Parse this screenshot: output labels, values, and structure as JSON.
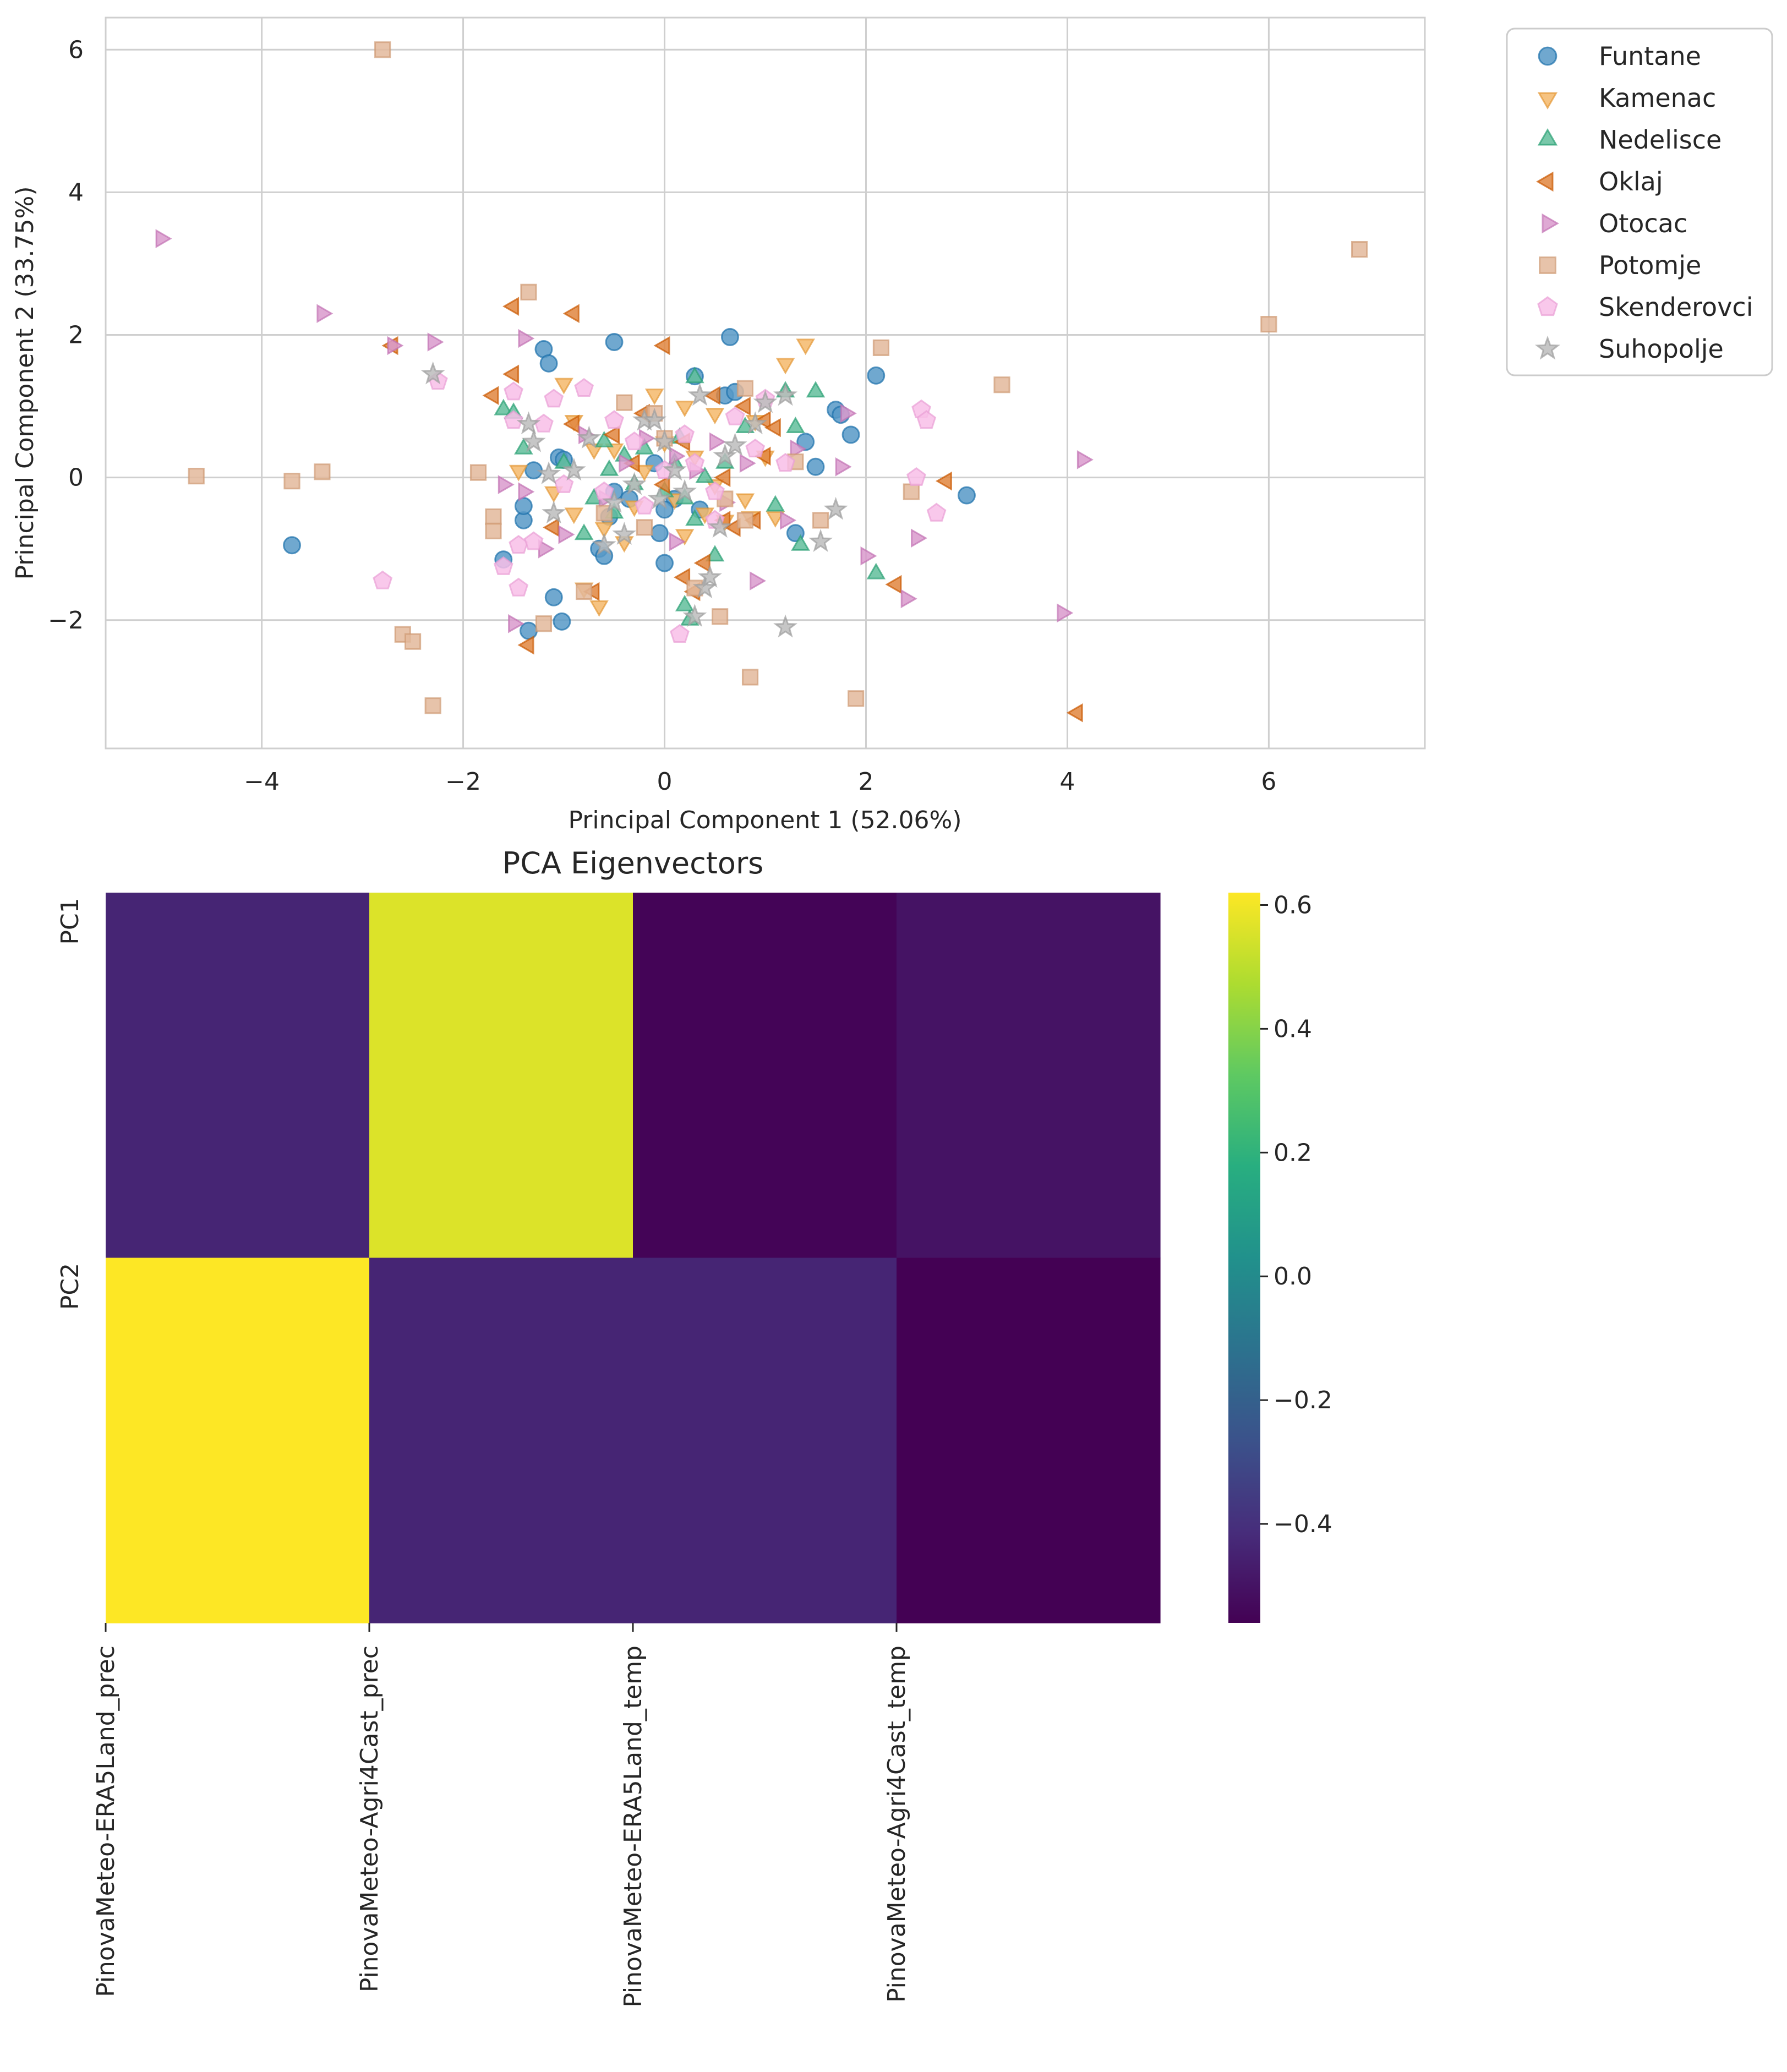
{
  "chart_data": [
    {
      "type": "scatter",
      "xlabel": "Principal Component 1 (52.06%)",
      "ylabel": "Principal Component 2 (33.75%)",
      "xlim": [
        -5.55,
        7.55
      ],
      "ylim": [
        -3.8,
        6.45
      ],
      "xticks": [
        -4,
        -2,
        0,
        2,
        4,
        6
      ],
      "yticks": [
        -2,
        0,
        2,
        4,
        6
      ],
      "grid": true,
      "legend_position": "outside-right-top",
      "series": [
        {
          "name": "Funtane",
          "marker": "circle",
          "color": "#1f77b4",
          "points": [
            [
              -3.7,
              -0.95
            ],
            [
              -1.2,
              1.8
            ],
            [
              -1.15,
              1.6
            ],
            [
              -0.5,
              1.9
            ],
            [
              0.65,
              1.97
            ],
            [
              2.1,
              1.43
            ],
            [
              3.0,
              -0.25
            ],
            [
              -1.6,
              -1.15
            ],
            [
              -1.35,
              -2.15
            ],
            [
              -1.1,
              -1.68
            ],
            [
              -1.02,
              -2.02
            ],
            [
              -1.4,
              -0.6
            ],
            [
              -1.3,
              0.1
            ],
            [
              -1.05,
              0.28
            ],
            [
              -0.65,
              -1.0
            ],
            [
              -0.6,
              -1.1
            ],
            [
              -0.5,
              -0.2
            ],
            [
              -0.35,
              -0.3
            ],
            [
              -0.1,
              0.2
            ],
            [
              0.0,
              -1.2
            ],
            [
              0.3,
              1.42
            ],
            [
              0.6,
              1.15
            ],
            [
              0.7,
              1.2
            ],
            [
              1.3,
              -0.78
            ],
            [
              1.4,
              0.5
            ],
            [
              1.5,
              0.15
            ],
            [
              1.7,
              0.95
            ],
            [
              1.75,
              0.88
            ],
            [
              1.85,
              0.6
            ],
            [
              -0.05,
              -0.78
            ],
            [
              0.1,
              -0.3
            ],
            [
              0.35,
              -0.45
            ],
            [
              -1.4,
              -0.4
            ],
            [
              -1.0,
              0.25
            ],
            [
              -0.55,
              -0.55
            ],
            [
              0.0,
              -0.45
            ]
          ]
        },
        {
          "name": "Kamenac",
          "marker": "triangle-down",
          "color": "#f0a13a",
          "points": [
            [
              1.2,
              1.6
            ],
            [
              1.4,
              1.87
            ],
            [
              -1.0,
              1.32
            ],
            [
              -0.1,
              1.17
            ],
            [
              0.2,
              1.0
            ],
            [
              1.1,
              -0.55
            ],
            [
              -0.8,
              -1.55
            ],
            [
              -0.65,
              -1.8
            ],
            [
              -1.45,
              0.1
            ],
            [
              -1.1,
              -0.2
            ],
            [
              -0.9,
              0.8
            ],
            [
              -0.5,
              0.4
            ],
            [
              -0.3,
              -0.4
            ],
            [
              -0.2,
              0.1
            ],
            [
              0.0,
              0.5
            ],
            [
              0.1,
              -0.3
            ],
            [
              0.4,
              -0.5
            ],
            [
              0.5,
              0.9
            ],
            [
              0.6,
              -0.6
            ],
            [
              0.8,
              -0.3
            ],
            [
              0.9,
              0.8
            ],
            [
              -0.7,
              0.4
            ],
            [
              -0.6,
              -0.7
            ],
            [
              0.5,
              -0.1
            ],
            [
              0.3,
              0.3
            ],
            [
              -0.4,
              -0.9
            ],
            [
              -0.9,
              -0.5
            ],
            [
              1.0,
              0.3
            ],
            [
              0.85,
              -0.55
            ],
            [
              0.2,
              -0.8
            ]
          ]
        },
        {
          "name": "Nedelisce",
          "marker": "triangle-up",
          "color": "#2ca87a",
          "points": [
            [
              -1.6,
              0.95
            ],
            [
              -1.5,
              0.9
            ],
            [
              -1.4,
              0.4
            ],
            [
              -1.0,
              0.2
            ],
            [
              -0.7,
              -0.3
            ],
            [
              -0.6,
              0.5
            ],
            [
              -0.5,
              -0.5
            ],
            [
              -0.4,
              0.3
            ],
            [
              0.0,
              -0.2
            ],
            [
              0.1,
              0.2
            ],
            [
              0.2,
              -0.3
            ],
            [
              0.3,
              1.4
            ],
            [
              0.3,
              -0.6
            ],
            [
              0.5,
              -1.1
            ],
            [
              0.8,
              0.7
            ],
            [
              1.1,
              -0.4
            ],
            [
              1.2,
              1.2
            ],
            [
              1.3,
              0.7
            ],
            [
              1.35,
              -0.95
            ],
            [
              1.5,
              1.2
            ],
            [
              2.1,
              -1.35
            ],
            [
              0.25,
              -2.0
            ],
            [
              0.2,
              -1.8
            ],
            [
              -0.2,
              0.4
            ],
            [
              0.4,
              0.0
            ],
            [
              -0.8,
              -0.8
            ],
            [
              0.6,
              0.2
            ],
            [
              -0.3,
              -0.1
            ],
            [
              0.15,
              0.55
            ],
            [
              -0.55,
              0.1
            ]
          ]
        },
        {
          "name": "Oklaj",
          "marker": "triangle-left",
          "color": "#d55e00",
          "points": [
            [
              -1.5,
              2.4
            ],
            [
              -0.9,
              2.3
            ],
            [
              -2.7,
              1.85
            ],
            [
              -1.5,
              1.45
            ],
            [
              -1.7,
              1.15
            ],
            [
              -1.35,
              -2.35
            ],
            [
              -0.7,
              -1.6
            ],
            [
              0.0,
              1.85
            ],
            [
              0.5,
              1.15
            ],
            [
              0.8,
              1.0
            ],
            [
              1.0,
              0.8
            ],
            [
              -0.5,
              0.6
            ],
            [
              -0.3,
              0.2
            ],
            [
              0.0,
              -0.1
            ],
            [
              0.2,
              0.5
            ],
            [
              0.4,
              -1.2
            ],
            [
              0.6,
              -0.6
            ],
            [
              0.7,
              -0.7
            ],
            [
              0.9,
              -0.6
            ],
            [
              1.0,
              0.3
            ],
            [
              1.1,
              0.7
            ],
            [
              2.3,
              -1.5
            ],
            [
              2.8,
              -0.05
            ],
            [
              4.1,
              -3.3
            ],
            [
              -1.1,
              -0.7
            ],
            [
              -0.9,
              0.75
            ],
            [
              0.3,
              -1.6
            ],
            [
              0.6,
              0.0
            ],
            [
              0.2,
              -1.4
            ],
            [
              -0.2,
              0.9
            ]
          ]
        },
        {
          "name": "Otocac",
          "marker": "triangle-right",
          "color": "#cc78bc",
          "points": [
            [
              -5.0,
              3.35
            ],
            [
              -3.4,
              2.3
            ],
            [
              -2.3,
              1.9
            ],
            [
              -2.7,
              1.85
            ],
            [
              -1.4,
              1.95
            ],
            [
              -1.6,
              -0.1
            ],
            [
              -1.5,
              -2.05
            ],
            [
              -1.4,
              -0.2
            ],
            [
              -1.2,
              -1.0
            ],
            [
              -1.0,
              -0.8
            ],
            [
              -0.6,
              -0.3
            ],
            [
              -0.4,
              0.2
            ],
            [
              0.1,
              -0.9
            ],
            [
              0.3,
              0.1
            ],
            [
              0.5,
              0.5
            ],
            [
              0.8,
              0.2
            ],
            [
              0.9,
              -1.45
            ],
            [
              1.3,
              0.4
            ],
            [
              1.8,
              0.9
            ],
            [
              1.75,
              0.15
            ],
            [
              2.0,
              -1.1
            ],
            [
              2.4,
              -1.7
            ],
            [
              2.5,
              -0.85
            ],
            [
              3.95,
              -1.9
            ],
            [
              4.15,
              0.25
            ],
            [
              0.1,
              0.3
            ],
            [
              -0.8,
              0.6
            ],
            [
              0.6,
              -0.35
            ],
            [
              1.2,
              -0.6
            ],
            [
              -0.2,
              0.55
            ]
          ]
        },
        {
          "name": "Potomje",
          "marker": "square",
          "color": "#d9a27a",
          "points": [
            [
              -2.8,
              6.0
            ],
            [
              6.9,
              3.2
            ],
            [
              6.0,
              2.15
            ],
            [
              -1.35,
              2.6
            ],
            [
              2.15,
              1.82
            ],
            [
              3.35,
              1.3
            ],
            [
              -4.65,
              0.02
            ],
            [
              -3.7,
              -0.05
            ],
            [
              -3.4,
              0.08
            ],
            [
              -1.85,
              0.07
            ],
            [
              -1.7,
              -0.55
            ],
            [
              -1.7,
              -0.75
            ],
            [
              -2.6,
              -2.2
            ],
            [
              -2.5,
              -2.3
            ],
            [
              -2.3,
              -3.2
            ],
            [
              -1.2,
              -2.05
            ],
            [
              -0.8,
              -1.6
            ],
            [
              -0.6,
              -0.5
            ],
            [
              -0.4,
              1.05
            ],
            [
              -0.1,
              0.9
            ],
            [
              0.0,
              0.55
            ],
            [
              0.3,
              -1.55
            ],
            [
              0.55,
              -1.95
            ],
            [
              0.8,
              1.25
            ],
            [
              0.8,
              -0.6
            ],
            [
              0.85,
              -2.8
            ],
            [
              1.3,
              0.22
            ],
            [
              1.55,
              -0.6
            ],
            [
              1.9,
              -3.1
            ],
            [
              2.45,
              -0.2
            ],
            [
              -0.2,
              -0.7
            ],
            [
              0.6,
              -0.3
            ]
          ]
        },
        {
          "name": "Skenderovci",
          "marker": "pentagon",
          "color": "#f6a8e0",
          "points": [
            [
              -2.8,
              -1.45
            ],
            [
              -2.25,
              1.35
            ],
            [
              -1.6,
              -1.25
            ],
            [
              -1.5,
              1.2
            ],
            [
              -1.5,
              0.8
            ],
            [
              -1.45,
              -0.95
            ],
            [
              -1.2,
              0.75
            ],
            [
              -1.1,
              1.1
            ],
            [
              -1.0,
              -0.1
            ],
            [
              -0.8,
              1.25
            ],
            [
              -0.6,
              -0.2
            ],
            [
              -0.5,
              0.8
            ],
            [
              -0.2,
              -0.4
            ],
            [
              0.0,
              0.1
            ],
            [
              0.15,
              -2.2
            ],
            [
              0.2,
              0.6
            ],
            [
              0.5,
              -0.6
            ],
            [
              0.7,
              0.85
            ],
            [
              0.9,
              0.4
            ],
            [
              1.0,
              1.1
            ],
            [
              1.2,
              0.2
            ],
            [
              2.55,
              0.95
            ],
            [
              2.6,
              0.8
            ],
            [
              2.5,
              0.0
            ],
            [
              2.7,
              -0.5
            ],
            [
              -1.45,
              -1.55
            ],
            [
              -1.3,
              -0.9
            ],
            [
              0.3,
              0.2
            ],
            [
              -0.3,
              0.5
            ],
            [
              0.5,
              -0.2
            ]
          ]
        },
        {
          "name": "Suhopolje",
          "marker": "star",
          "color": "#a6a6a6",
          "points": [
            [
              -2.3,
              1.45
            ],
            [
              -1.35,
              0.75
            ],
            [
              -1.3,
              0.5
            ],
            [
              -1.15,
              0.05
            ],
            [
              -0.9,
              0.1
            ],
            [
              -0.75,
              0.55
            ],
            [
              -0.6,
              -0.95
            ],
            [
              -0.4,
              -0.8
            ],
            [
              -0.2,
              0.8
            ],
            [
              -0.1,
              0.8
            ],
            [
              0.0,
              0.5
            ],
            [
              0.1,
              0.1
            ],
            [
              0.2,
              -0.2
            ],
            [
              0.4,
              -1.55
            ],
            [
              0.45,
              -1.4
            ],
            [
              0.6,
              0.3
            ],
            [
              0.9,
              0.75
            ],
            [
              1.0,
              1.05
            ],
            [
              1.2,
              1.15
            ],
            [
              1.55,
              -0.9
            ],
            [
              1.7,
              -0.45
            ],
            [
              1.2,
              -2.1
            ],
            [
              -1.1,
              -0.5
            ],
            [
              -0.3,
              -0.1
            ],
            [
              0.3,
              -1.95
            ],
            [
              0.7,
              0.45
            ],
            [
              -0.05,
              -0.3
            ],
            [
              0.35,
              1.15
            ],
            [
              0.55,
              -0.7
            ],
            [
              -0.5,
              -0.35
            ]
          ]
        }
      ]
    },
    {
      "type": "heatmap",
      "title": "PCA Eigenvectors",
      "rows": [
        "PC1",
        "PC2"
      ],
      "columns": [
        "PinovaMeteo-ERA5Land_prec",
        "PinovaMeteo-Agri4Cast_prec",
        "PinovaMeteo-ERA5Land_temp",
        "PinovaMeteo-Agri4Cast_temp"
      ],
      "values": [
        [
          -0.44,
          0.56,
          -0.55,
          -0.5
        ],
        [
          0.62,
          -0.44,
          -0.44,
          -0.56
        ]
      ],
      "colormap": "viridis",
      "vmin": -0.56,
      "vmax": 0.62,
      "colorbar_ticks": [
        0.6,
        0.4,
        0.2,
        0.0,
        -0.2,
        -0.4
      ],
      "colorbar_tick_labels": [
        "0.6",
        "0.4",
        "0.2",
        "0.0",
        "−0.2",
        "−0.4"
      ]
    }
  ]
}
